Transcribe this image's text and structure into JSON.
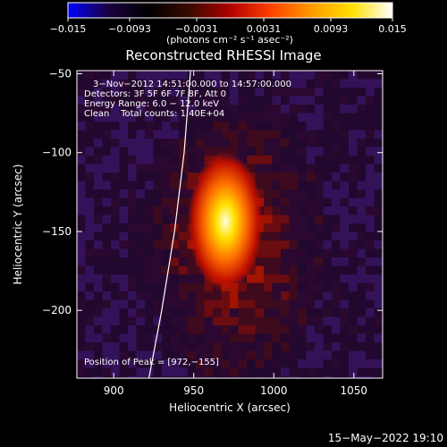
{
  "chart_data": {
    "type": "heatmap",
    "title": "Reconstructed RHESSI Image",
    "xlabel": "Heliocentric X (arcsec)",
    "ylabel": "Heliocentric Y (arcsec)",
    "xlim": [
      877,
      1068
    ],
    "ylim": [
      -243,
      -48
    ],
    "x_ticks": [
      900,
      950,
      1000,
      1050
    ],
    "y_ticks": [
      -50,
      -100,
      -150,
      -200
    ],
    "colorbar": {
      "label": "(photons cm⁻² s⁻¹ asec⁻²)",
      "min": -0.015,
      "max": 0.015,
      "tick_values": [
        -0.015,
        -0.0093,
        -0.0031,
        0.0031,
        0.0093,
        0.015
      ],
      "tick_labels": [
        "−0.015",
        "−0.0093",
        "−0.0031",
        "0.0031",
        "0.0093",
        "0.015"
      ],
      "colormap": [
        "#0000ff",
        "#1a0040",
        "#000000",
        "#3a0a00",
        "#b00000",
        "#ff4000",
        "#ff9a00",
        "#ffe000",
        "#ffffff"
      ]
    },
    "annotations": {
      "time_range": "3−Nov−2012 14:51:00.000 to 14:57:00.000",
      "detectors": "Detectors: 3F 5F 6F 7F 8F, Att 0",
      "energy": "Energy Range: 6.0 − 12.0 keV",
      "method": "Clean    Total counts: 1.40E+04",
      "peak": "Position of Peak = [972,−155]"
    },
    "peak": {
      "x": 972,
      "y": -155,
      "value": 0.015
    },
    "limb_arc": [
      [
        948,
        -48
      ],
      [
        944,
        -100
      ],
      [
        938,
        -150
      ],
      [
        930,
        -200
      ],
      [
        922,
        -243
      ]
    ],
    "timestamp": "15−May−2022 19:10"
  }
}
